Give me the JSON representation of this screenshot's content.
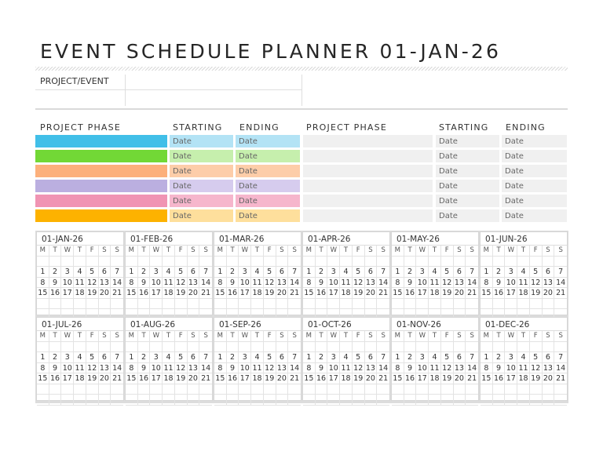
{
  "title": "EVENT SCHEDULE PLANNER 01-JAN-26",
  "project_event": {
    "label": "PROJECT/EVENT",
    "value": ""
  },
  "phases": {
    "headers": {
      "phase": "PROJECT PHASE",
      "starting": "STARTING",
      "ending": "ENDING"
    },
    "left": [
      {
        "color": "#41bfe8",
        "light": "#b3e3f5",
        "name": "",
        "start": "Date",
        "end": "Date"
      },
      {
        "color": "#72d836",
        "light": "#c6efad",
        "name": "",
        "start": "Date",
        "end": "Date"
      },
      {
        "color": "#fcb07c",
        "light": "#fdcda9",
        "name": "",
        "start": "Date",
        "end": "Date"
      },
      {
        "color": "#bbafe0",
        "light": "#d6ccee",
        "name": "",
        "start": "Date",
        "end": "Date"
      },
      {
        "color": "#f094b3",
        "light": "#f6b6cc",
        "name": "",
        "start": "Date",
        "end": "Date"
      },
      {
        "color": "#fdb200",
        "light": "#fedf9c",
        "name": "",
        "start": "Date",
        "end": "Date"
      }
    ],
    "right": [
      {
        "name": "",
        "start": "Date",
        "end": "Date"
      },
      {
        "name": "",
        "start": "Date",
        "end": "Date"
      },
      {
        "name": "",
        "start": "Date",
        "end": "Date"
      },
      {
        "name": "",
        "start": "Date",
        "end": "Date"
      },
      {
        "name": "",
        "start": "Date",
        "end": "Date"
      },
      {
        "name": "",
        "start": "Date",
        "end": "Date"
      }
    ]
  },
  "calendar": {
    "weekdays": [
      "M",
      "T",
      "W",
      "T",
      "F",
      "S",
      "S"
    ],
    "months": [
      "01-JAN-26",
      "01-FEB-26",
      "01-MAR-26",
      "01-APR-26",
      "01-MAY-26",
      "01-JUN-26",
      "01-JUL-26",
      "01-AUG-26",
      "01-SEP-26",
      "01-OCT-26",
      "01-NOV-26",
      "01-DEC-26"
    ],
    "weeks": [
      [
        "",
        "",
        "",
        "",
        "",
        "",
        ""
      ],
      [
        "1",
        "2",
        "3",
        "4",
        "5",
        "6",
        "7"
      ],
      [
        "8",
        "9",
        "10",
        "11",
        "12",
        "13",
        "14"
      ],
      [
        "15",
        "16",
        "17",
        "18",
        "19",
        "20",
        "21"
      ],
      [
        "",
        "",
        "",
        "",
        "",
        "",
        ""
      ],
      [
        "",
        "",
        "",
        "",
        "",
        "",
        ""
      ]
    ]
  }
}
